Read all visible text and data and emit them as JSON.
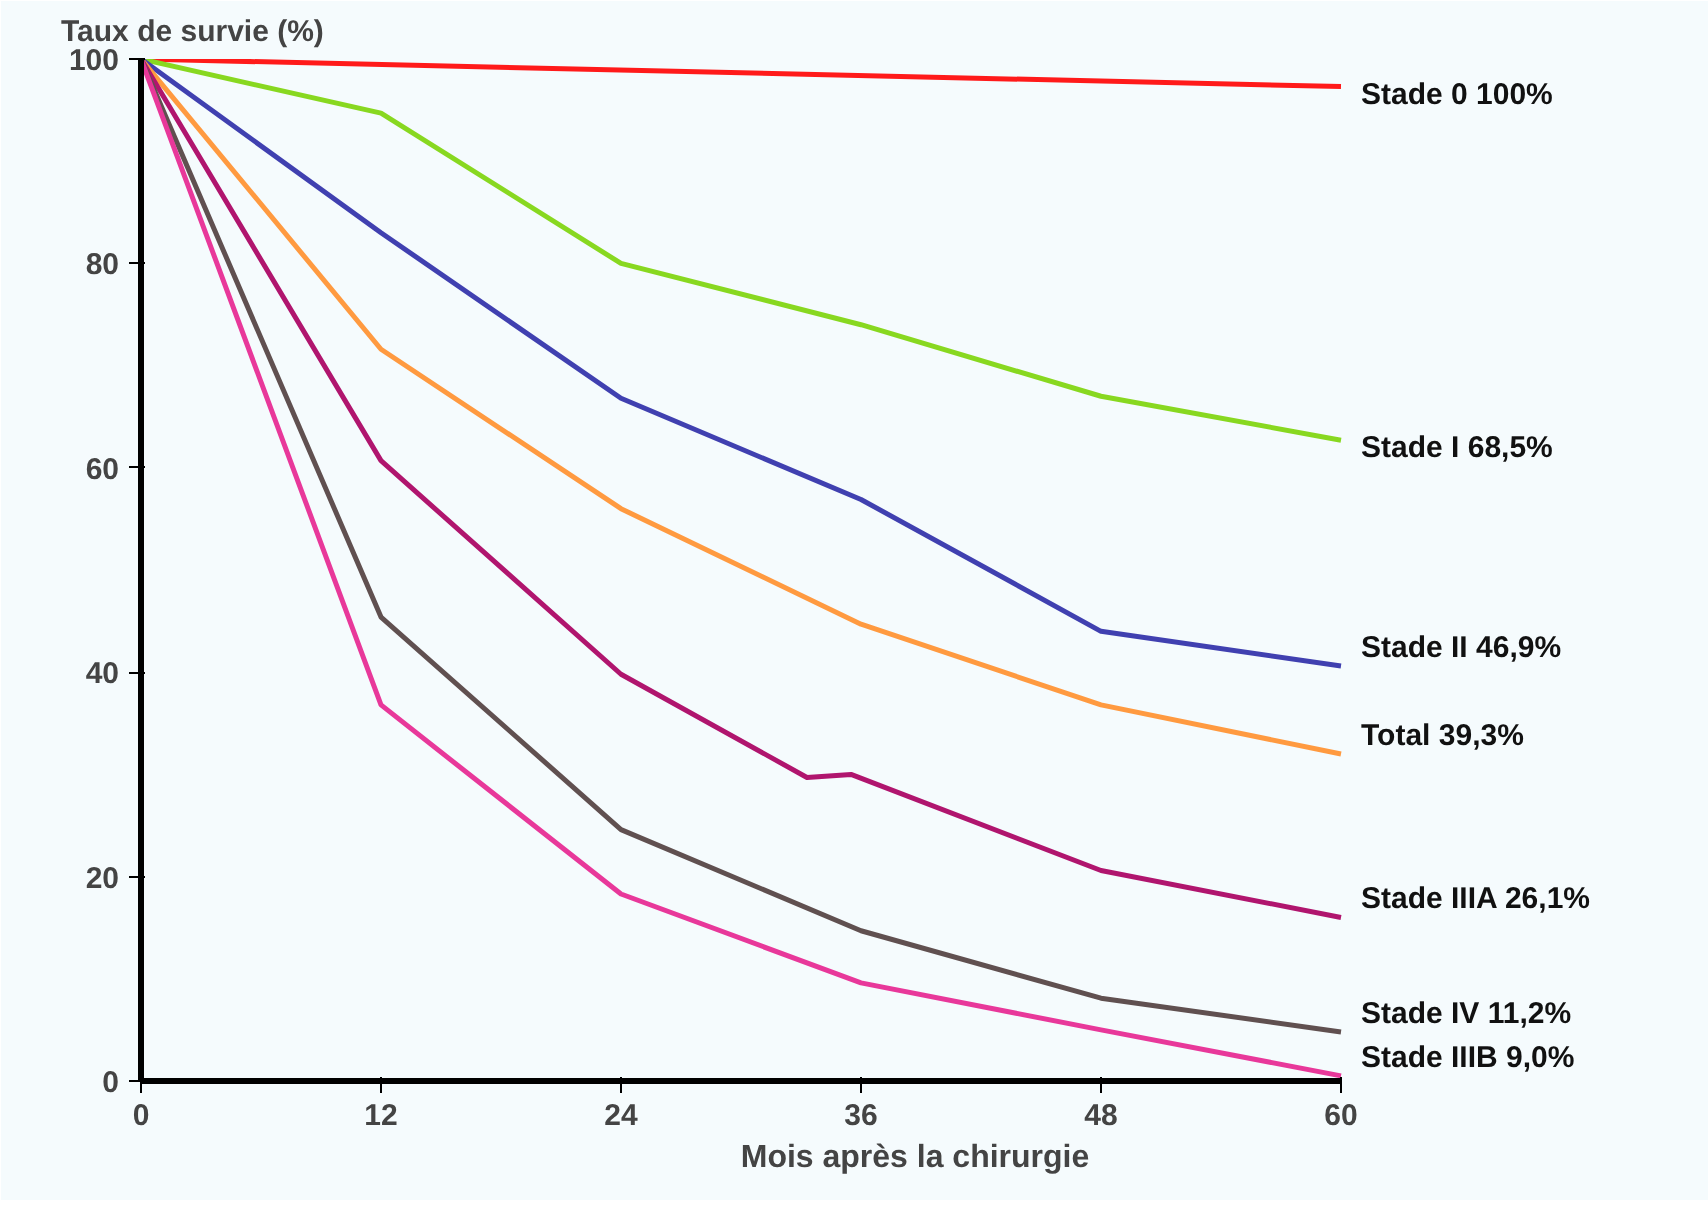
{
  "chart_data": {
    "type": "line",
    "ylabel": "Taux de survie (%)",
    "xlabel": "Mois après la chirurgie",
    "xlim": [
      0,
      60
    ],
    "xticks": [
      0,
      12,
      24,
      36,
      48,
      60
    ],
    "ylim": [
      0,
      100
    ],
    "yticks": [
      0,
      20,
      40,
      60,
      80,
      100
    ],
    "grid": false,
    "line_style": "solid",
    "series": [
      {
        "name": "Stade 0  100%",
        "color": "#ff1a1a",
        "x": [
          0,
          60
        ],
        "values": [
          100,
          97.3
        ]
      },
      {
        "name": "Stade I  68,5%",
        "color": "#88d820",
        "x": [
          0,
          12,
          24,
          36,
          48,
          60
        ],
        "values": [
          100,
          94.7,
          80,
          74,
          67,
          62.7
        ]
      },
      {
        "name": "Stade II  46,9%",
        "color": "#4040b0",
        "x": [
          0,
          12,
          24,
          36,
          48,
          60
        ],
        "values": [
          100,
          83,
          66.8,
          56.9,
          44,
          40.6
        ]
      },
      {
        "name": "Total  39,3%",
        "color": "#ff9a40",
        "x": [
          0,
          12,
          24,
          36,
          48,
          60
        ],
        "values": [
          100,
          71.6,
          56,
          44.7,
          36.8,
          32
        ]
      },
      {
        "name": "Stade IIIA  26,1%",
        "color": "#b0156e",
        "x": [
          0,
          12,
          24,
          33.3,
          35.5,
          48,
          60
        ],
        "values": [
          100,
          60.7,
          39.8,
          29.7,
          30,
          20.6,
          16
        ]
      },
      {
        "name": "Stade IV  11,2%",
        "color": "#605050",
        "x": [
          0,
          12,
          24,
          36,
          48,
          60
        ],
        "values": [
          100,
          45.4,
          24.6,
          14.7,
          8.1,
          4.8
        ]
      },
      {
        "name": "Stade IIIB  9,0%",
        "color": "#e8389a",
        "x": [
          0,
          12,
          24,
          36,
          48,
          60
        ],
        "values": [
          100,
          36.8,
          18.3,
          9.6,
          5,
          0.5
        ]
      }
    ]
  }
}
